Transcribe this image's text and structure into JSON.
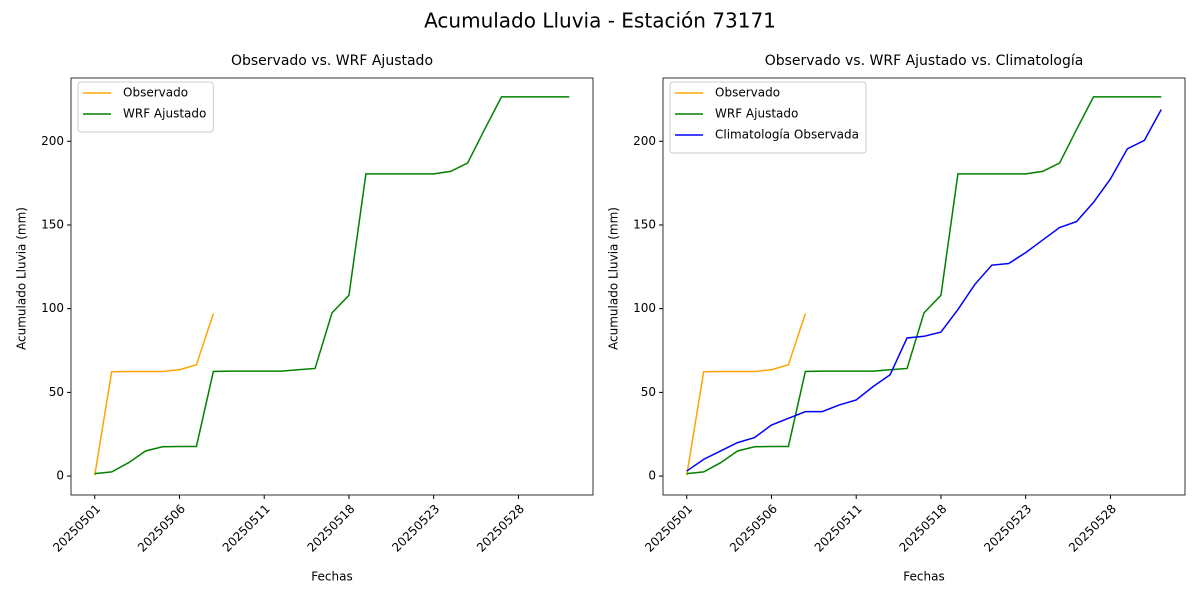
{
  "title": "Acumulado Lluvia - Estación 73171",
  "chart_data": [
    {
      "type": "line",
      "title": "Observado vs. WRF Ajustado",
      "x_label": "Fechas",
      "y_label": "Acumulado Lluvia (mm)",
      "categories": [
        "20250501",
        null,
        null,
        null,
        null,
        "20250506",
        null,
        null,
        null,
        null,
        "20250511",
        null,
        null,
        null,
        null,
        "20250518",
        null,
        null,
        null,
        null,
        "20250523",
        null,
        null,
        null,
        null,
        "20250528",
        null,
        null,
        null
      ],
      "ylim": [
        -11.3,
        237.8
      ],
      "yticks": [
        0,
        50,
        100,
        150,
        200
      ],
      "legend": "upper left",
      "grid": false,
      "series": [
        {
          "name": "Observado",
          "color": "#ffa500",
          "values": [
            0.5,
            62.3,
            62.5,
            62.5,
            62.5,
            63.5,
            66.5,
            97,
            null,
            null,
            null,
            null,
            null,
            null,
            null,
            null,
            null,
            null,
            null,
            null,
            null,
            null,
            null,
            null,
            null,
            null,
            null,
            null,
            null
          ]
        },
        {
          "name": "WRF Ajustado",
          "color": "#008000",
          "values": [
            1.5,
            2.5,
            8,
            15,
            17.5,
            17.7,
            17.7,
            62.5,
            62.7,
            62.7,
            62.7,
            62.7,
            63.5,
            64.3,
            97.5,
            108,
            180.5,
            180.5,
            180.5,
            180.5,
            180.5,
            182,
            187,
            207,
            226.5,
            226.5,
            226.5,
            226.5,
            226.5
          ]
        }
      ]
    },
    {
      "type": "line",
      "title": "Observado vs. WRF Ajustado vs. Climatología",
      "x_label": "Fechas",
      "y_label": "Acumulado Lluvia (mm)",
      "categories": [
        "20250501",
        null,
        null,
        null,
        null,
        "20250506",
        null,
        null,
        null,
        null,
        "20250511",
        null,
        null,
        null,
        null,
        "20250518",
        null,
        null,
        null,
        null,
        "20250523",
        null,
        null,
        null,
        null,
        "20250528",
        null,
        null,
        null
      ],
      "ylim": [
        -11.3,
        237.8
      ],
      "yticks": [
        0,
        50,
        100,
        150,
        200
      ],
      "legend": "upper left",
      "grid": false,
      "series": [
        {
          "name": "Observado",
          "color": "#ffa500",
          "values": [
            0.5,
            62.3,
            62.5,
            62.5,
            62.5,
            63.5,
            66.5,
            97,
            null,
            null,
            null,
            null,
            null,
            null,
            null,
            null,
            null,
            null,
            null,
            null,
            null,
            null,
            null,
            null,
            null,
            null,
            null,
            null,
            null
          ]
        },
        {
          "name": "WRF Ajustado",
          "color": "#008000",
          "values": [
            1.5,
            2.5,
            8,
            15,
            17.5,
            17.7,
            17.7,
            62.5,
            62.7,
            62.7,
            62.7,
            62.7,
            63.5,
            64.3,
            97.5,
            108,
            180.5,
            180.5,
            180.5,
            180.5,
            180.5,
            182,
            187,
            207,
            226.5,
            226.5,
            226.5,
            226.5,
            226.5
          ]
        },
        {
          "name": "Climatología Observada",
          "color": "#0000ff",
          "values": [
            3,
            10,
            15,
            20,
            23,
            30.5,
            34.5,
            38.5,
            38.5,
            42.5,
            45.5,
            53.5,
            60.5,
            82.5,
            83.5,
            86,
            99.5,
            114.5,
            126,
            127,
            133.5,
            141,
            148.5,
            152,
            163.5,
            177.5,
            195.5,
            200.5,
            219
          ]
        }
      ]
    }
  ]
}
